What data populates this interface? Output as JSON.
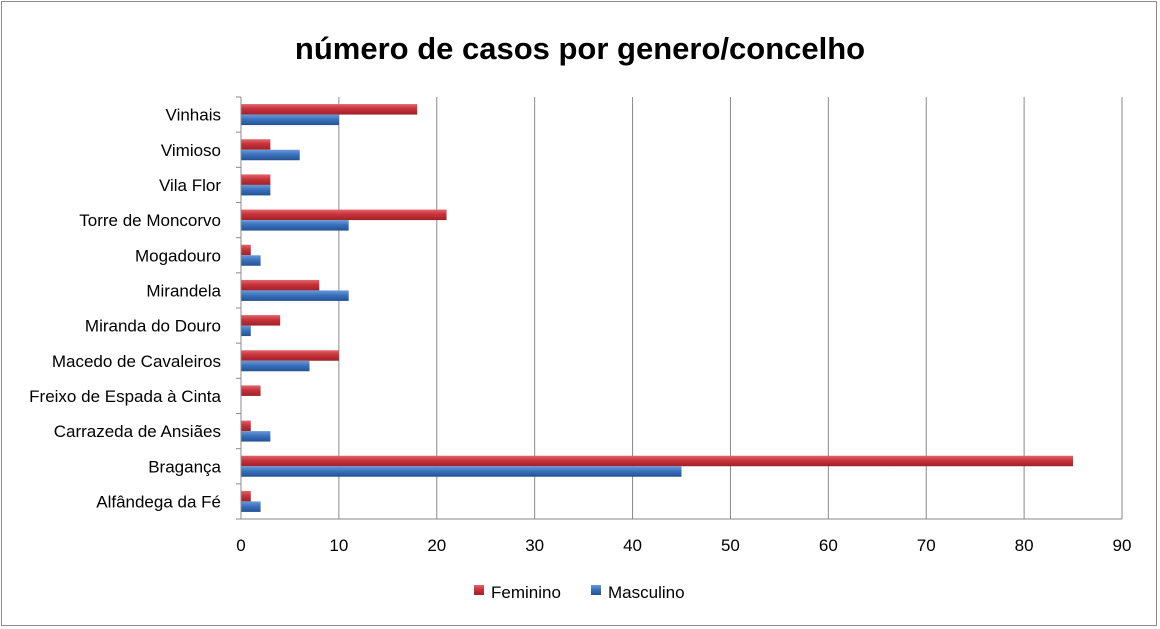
{
  "chart_data": {
    "type": "bar",
    "orientation": "horizontal",
    "title": "número de casos por genero/concelho",
    "categories": [
      "Vinhais",
      "Vimioso",
      "Vila Flor",
      "Torre de Moncorvo",
      "Mogadouro",
      "Mirandela",
      "Miranda do Douro",
      "Macedo de Cavaleiros",
      "Freixo de Espada à Cinta",
      "Carrazeda de Ansiães",
      "Bragança",
      "Alfândega da Fé"
    ],
    "series": [
      {
        "name": "Feminino",
        "color": "#c8323a",
        "values": [
          18,
          3,
          3,
          21,
          1,
          8,
          4,
          10,
          2,
          1,
          85,
          1
        ]
      },
      {
        "name": "Masculino",
        "color": "#3a72c0",
        "values": [
          10,
          6,
          3,
          11,
          2,
          11,
          1,
          7,
          0,
          3,
          45,
          2
        ]
      }
    ],
    "xlim": [
      0,
      90
    ],
    "xticks": [
      "0",
      "10",
      "20",
      "30",
      "40",
      "50",
      "60",
      "70",
      "80",
      "90"
    ],
    "grid": "vertical",
    "legend": "bottom"
  }
}
